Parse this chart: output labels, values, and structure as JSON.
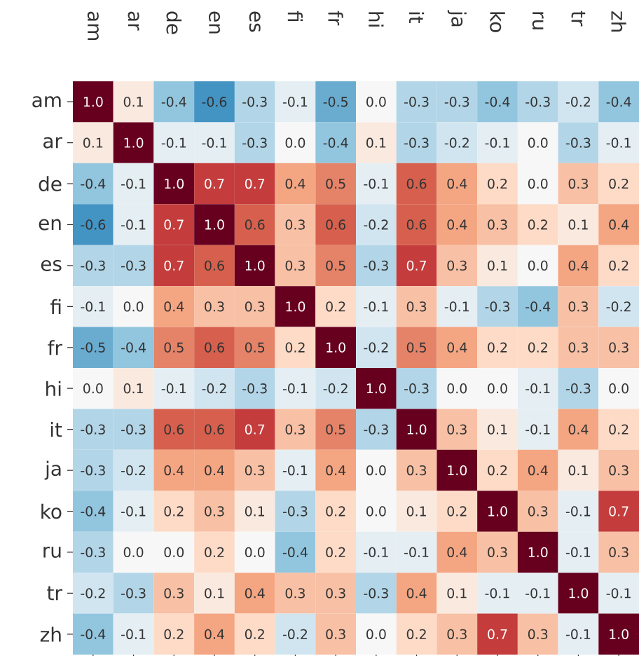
{
  "chart_data": {
    "type": "heatmap",
    "categories": [
      "am",
      "ar",
      "de",
      "en",
      "es",
      "fi",
      "fr",
      "hi",
      "it",
      "ja",
      "ko",
      "ru",
      "tr",
      "zh"
    ],
    "y_categories": [
      "am",
      "ar",
      "de",
      "en",
      "es",
      "fi",
      "fr",
      "hi",
      "it",
      "ja",
      "ko",
      "ru",
      "tr",
      "zh"
    ],
    "data_labels": true,
    "cells": [
      [
        1.0,
        0.1,
        -0.4,
        -0.6,
        -0.3,
        -0.1,
        -0.5,
        0.0,
        -0.3,
        -0.3,
        -0.4,
        -0.3,
        -0.2,
        -0.4
      ],
      [
        0.1,
        1.0,
        -0.1,
        -0.1,
        -0.3,
        0.0,
        -0.4,
        0.1,
        -0.3,
        -0.2,
        -0.1,
        0.0,
        -0.3,
        -0.1
      ],
      [
        -0.4,
        -0.1,
        1.0,
        0.7,
        0.7,
        0.4,
        0.5,
        -0.1,
        0.6,
        0.4,
        0.2,
        0.0,
        0.3,
        0.2
      ],
      [
        -0.6,
        -0.1,
        0.7,
        1.0,
        0.6,
        0.3,
        0.6,
        -0.2,
        0.6,
        0.4,
        0.3,
        0.2,
        0.1,
        0.4
      ],
      [
        -0.3,
        -0.3,
        0.7,
        0.6,
        1.0,
        0.3,
        0.5,
        -0.3,
        0.7,
        0.3,
        0.1,
        0.0,
        0.4,
        0.2
      ],
      [
        -0.1,
        0.0,
        0.4,
        0.3,
        0.3,
        1.0,
        0.2,
        -0.1,
        0.3,
        -0.1,
        -0.3,
        -0.4,
        0.3,
        -0.2
      ],
      [
        -0.5,
        -0.4,
        0.5,
        0.6,
        0.5,
        0.2,
        1.0,
        -0.2,
        0.5,
        0.4,
        0.2,
        0.2,
        0.3,
        0.3
      ],
      [
        0.0,
        0.1,
        -0.1,
        -0.2,
        -0.3,
        -0.1,
        -0.2,
        1.0,
        -0.3,
        0.0,
        0.0,
        -0.1,
        -0.3,
        0.0
      ],
      [
        -0.3,
        -0.3,
        0.6,
        0.6,
        0.7,
        0.3,
        0.5,
        -0.3,
        1.0,
        0.3,
        0.1,
        -0.1,
        0.4,
        0.2
      ],
      [
        -0.3,
        -0.2,
        0.4,
        0.4,
        0.3,
        -0.1,
        0.4,
        0.0,
        0.3,
        1.0,
        0.2,
        0.4,
        0.1,
        0.3
      ],
      [
        -0.4,
        -0.1,
        0.2,
        0.3,
        0.1,
        -0.3,
        0.2,
        0.0,
        0.1,
        0.2,
        1.0,
        0.3,
        -0.1,
        0.7
      ],
      [
        -0.3,
        0.0,
        0.0,
        0.2,
        0.0,
        -0.4,
        0.2,
        -0.1,
        -0.1,
        0.4,
        0.3,
        1.0,
        -0.1,
        0.3
      ],
      [
        -0.2,
        -0.3,
        0.3,
        0.1,
        0.4,
        0.3,
        0.3,
        -0.3,
        0.4,
        0.1,
        -0.1,
        -0.1,
        1.0,
        -0.1
      ],
      [
        -0.4,
        -0.1,
        0.2,
        0.4,
        0.2,
        -0.2,
        0.3,
        0.0,
        0.2,
        0.3,
        0.7,
        0.3,
        -0.1,
        1.0
      ]
    ],
    "cell_labels": [
      [
        "1.0",
        "0.1",
        "-0.4",
        "-0.6",
        "-0.3",
        "-0.1",
        "-0.5",
        "0.0",
        "-0.3",
        "-0.3",
        "-0.4",
        "-0.3",
        "-0.2",
        "-0.4"
      ],
      [
        "0.1",
        "1.0",
        "-0.1",
        "-0.1",
        "-0.3",
        "0.0",
        "-0.4",
        "0.1",
        "-0.3",
        "-0.2",
        "-0.1",
        "0.0",
        "-0.3",
        "-0.1"
      ],
      [
        "-0.4",
        "-0.1",
        "1.0",
        "0.7",
        "0.7",
        "0.4",
        "0.5",
        "-0.1",
        "0.6",
        "0.4",
        "0.2",
        "0.0",
        "0.3",
        "0.2"
      ],
      [
        "-0.6",
        "-0.1",
        "0.7",
        "1.0",
        "0.6",
        "0.3",
        "0.6",
        "-0.2",
        "0.6",
        "0.4",
        "0.3",
        "0.2",
        "0.1",
        "0.4"
      ],
      [
        "-0.3",
        "-0.3",
        "0.7",
        "0.6",
        "1.0",
        "0.3",
        "0.5",
        "-0.3",
        "0.7",
        "0.3",
        "0.1",
        "0.0",
        "0.4",
        "0.2"
      ],
      [
        "-0.1",
        "0.0",
        "0.4",
        "0.3",
        "0.3",
        "1.0",
        "0.2",
        "-0.1",
        "0.3",
        "-0.1",
        "-0.3",
        "-0.4",
        "0.3",
        "-0.2"
      ],
      [
        "-0.5",
        "-0.4",
        "0.5",
        "0.6",
        "0.5",
        "0.2",
        "1.0",
        "-0.2",
        "0.5",
        "0.4",
        "0.2",
        "0.2",
        "0.3",
        "0.3"
      ],
      [
        "0.0",
        "0.1",
        "-0.1",
        "-0.2",
        "-0.3",
        "-0.1",
        "-0.2",
        "1.0",
        "-0.3",
        "0.0",
        "0.0",
        "-0.1",
        "-0.3",
        "0.0"
      ],
      [
        "-0.3",
        "-0.3",
        "0.6",
        "0.6",
        "0.7",
        "0.3",
        "0.5",
        "-0.3",
        "1.0",
        "0.3",
        "0.1",
        "-0.1",
        "0.4",
        "0.2"
      ],
      [
        "-0.3",
        "-0.2",
        "0.4",
        "0.4",
        "0.3",
        "-0.1",
        "0.4",
        "0.0",
        "0.3",
        "1.0",
        "0.2",
        "0.4",
        "0.1",
        "0.3"
      ],
      [
        "-0.4",
        "-0.1",
        "0.2",
        "0.3",
        "0.1",
        "-0.3",
        "0.2",
        "0.0",
        "0.1",
        "0.2",
        "1.0",
        "0.3",
        "-0.1",
        "0.7"
      ],
      [
        "-0.3",
        "0.0",
        "0.0",
        "0.2",
        "0.0",
        "-0.4",
        "0.2",
        "-0.1",
        "-0.1",
        "0.4",
        "0.3",
        "1.0",
        "-0.1",
        "0.3"
      ],
      [
        "-0.2",
        "-0.3",
        "0.3",
        "0.1",
        "0.4",
        "0.3",
        "0.3",
        "-0.3",
        "0.4",
        "0.1",
        "-0.1",
        "-0.1",
        "1.0",
        "-0.1"
      ],
      [
        "-0.4",
        "-0.1",
        "0.2",
        "0.4",
        "0.2",
        "-0.2",
        "0.3",
        "0.0",
        "0.2",
        "0.3",
        "0.7",
        "0.3",
        "-0.1",
        "1.0"
      ]
    ]
  }
}
